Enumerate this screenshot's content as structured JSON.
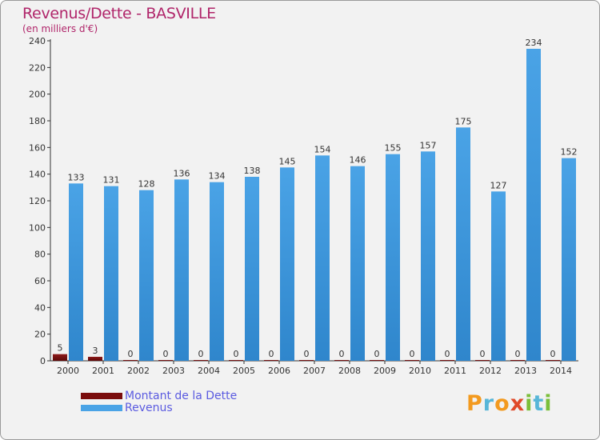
{
  "header": {
    "title": "Revenus/Dette - BASVILLE",
    "subtitle": "(en milliers d'€)"
  },
  "colors": {
    "dette": "#7a0c0c",
    "revenus": "#4aa3e6",
    "revenus_dark": "#2f86cc",
    "axis_text": "#333333",
    "title": "#b0256a",
    "legend_text": "#5a5ae0"
  },
  "legend": {
    "items": [
      {
        "label": "Montant de la Dette",
        "color": "#7a0c0c"
      },
      {
        "label": "Revenus",
        "color": "#4aa3e6"
      }
    ]
  },
  "logo": {
    "text": "Proxiti",
    "icon": "proxiti-logo"
  },
  "chart_data": {
    "type": "bar",
    "title": "Revenus/Dette - BASVILLE",
    "ylabel": "(en milliers d'€)",
    "xlabel": "",
    "ylim": [
      0,
      240
    ],
    "yticks": [
      0,
      20,
      40,
      60,
      80,
      100,
      120,
      140,
      160,
      180,
      200,
      220,
      240
    ],
    "grid": false,
    "legend_position": "bottom-left",
    "categories": [
      "2000",
      "2001",
      "2002",
      "2003",
      "2004",
      "2005",
      "2006",
      "2007",
      "2008",
      "2009",
      "2010",
      "2011",
      "2012",
      "2013",
      "2014"
    ],
    "series": [
      {
        "name": "Montant de la Dette",
        "values": [
          5,
          3,
          0,
          0,
          0,
          0,
          0,
          0,
          0,
          0,
          0,
          0,
          0,
          0,
          0
        ]
      },
      {
        "name": "Revenus",
        "values": [
          133,
          131,
          128,
          136,
          134,
          138,
          145,
          154,
          146,
          155,
          157,
          175,
          127,
          234,
          152
        ]
      }
    ]
  }
}
